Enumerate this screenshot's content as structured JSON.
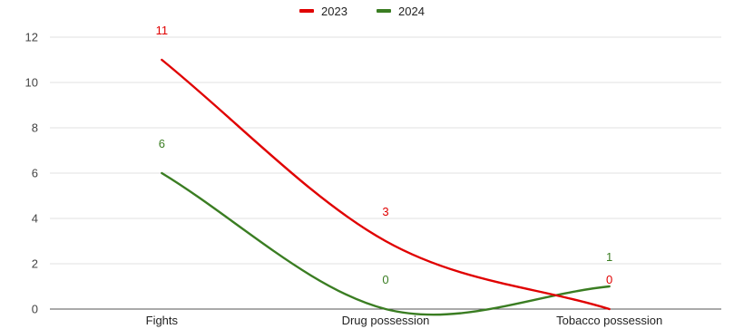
{
  "chart_data": {
    "type": "line",
    "title": "",
    "xlabel": "",
    "ylabel": "",
    "categories": [
      "Fights",
      "Drug possession",
      "Tobacco possession"
    ],
    "series": [
      {
        "name": "2023",
        "values": [
          11,
          3,
          0
        ],
        "color": "#e00000"
      },
      {
        "name": "2024",
        "values": [
          6,
          0,
          1
        ],
        "color": "#3a7d22"
      }
    ],
    "ylim": [
      0,
      12
    ],
    "yticks": [
      "0",
      "2",
      "4",
      "6",
      "8",
      "10",
      "12"
    ],
    "grid": true,
    "legend_position": "top-center",
    "smooth": true,
    "data_labels": true
  }
}
